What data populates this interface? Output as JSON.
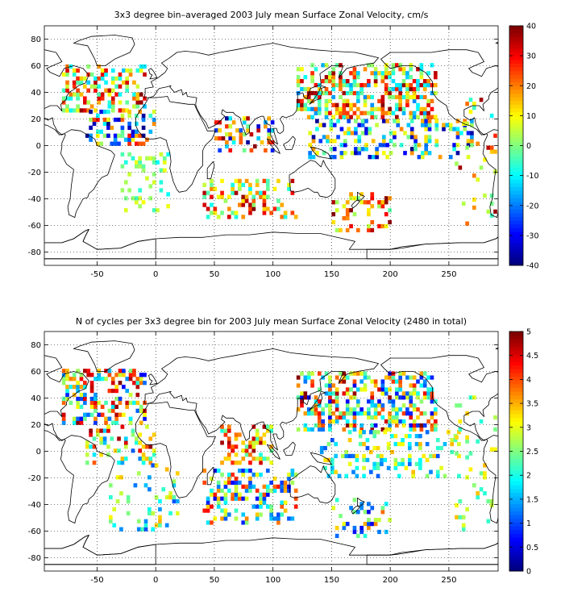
{
  "chart_data": [
    {
      "type": "heatmap",
      "title": "3x3 degree bin–averaged 2003 July mean Surface Zonal Velocity, cm/s",
      "xlabel": "",
      "ylabel": "",
      "xlim": [
        -95,
        292
      ],
      "ylim": [
        -90,
        90
      ],
      "xticks": [
        -50,
        0,
        50,
        100,
        150,
        200,
        250
      ],
      "yticks": [
        -80,
        -60,
        -40,
        -20,
        0,
        20,
        40,
        60,
        80
      ],
      "grid": true,
      "colormap": "jet",
      "colorbar_ticks": [
        -40,
        -30,
        -20,
        -10,
        0,
        10,
        20,
        30,
        40
      ],
      "clim": [
        -40,
        40
      ],
      "bin_size_deg": 3,
      "regions": [
        {
          "lon": [
            -80,
            -10
          ],
          "lat": [
            25,
            60
          ],
          "vmin": -15,
          "vmax": 40,
          "density": 0.45
        },
        {
          "lon": [
            -60,
            0
          ],
          "lat": [
            0,
            25
          ],
          "vmin": -40,
          "vmax": 30,
          "density": 0.35
        },
        {
          "lon": [
            -30,
            10
          ],
          "lat": [
            -50,
            -5
          ],
          "vmin": -10,
          "vmax": 10,
          "density": 0.2
        },
        {
          "lon": [
            50,
            100
          ],
          "lat": [
            -5,
            20
          ],
          "vmin": -40,
          "vmax": 40,
          "density": 0.4
        },
        {
          "lon": [
            40,
            120
          ],
          "lat": [
            -55,
            -25
          ],
          "vmin": -10,
          "vmax": 40,
          "density": 0.35
        },
        {
          "lon": [
            120,
            240
          ],
          "lat": [
            20,
            60
          ],
          "vmin": -20,
          "vmax": 40,
          "density": 0.45
        },
        {
          "lon": [
            130,
            270
          ],
          "lat": [
            -10,
            20
          ],
          "vmin": -40,
          "vmax": 20,
          "density": 0.35
        },
        {
          "lon": [
            150,
            200
          ],
          "lat": [
            -65,
            -35
          ],
          "vmin": -5,
          "vmax": 40,
          "density": 0.25
        },
        {
          "lon": [
            255,
            290
          ],
          "lat": [
            -60,
            40
          ],
          "vmin": -10,
          "vmax": 40,
          "density": 0.1
        }
      ]
    },
    {
      "type": "heatmap",
      "title": "N of cycles per 3x3 degree bin for 2003 July mean Surface Zonal Velocity (2480 in total)",
      "xlabel": "",
      "ylabel": "",
      "xlim": [
        -95,
        292
      ],
      "ylim": [
        -90,
        90
      ],
      "xticks": [
        -50,
        0,
        50,
        100,
        150,
        200,
        250
      ],
      "yticks": [
        -80,
        -60,
        -40,
        -20,
        0,
        20,
        40,
        60,
        80
      ],
      "grid": true,
      "colormap": "jet",
      "colorbar_ticks": [
        0,
        0.5,
        1,
        1.5,
        2,
        2.5,
        3,
        3.5,
        4,
        4.5,
        5
      ],
      "clim": [
        0,
        5
      ],
      "total_cycles": 2480,
      "bin_size_deg": 3,
      "regions": [
        {
          "lon": [
            -80,
            -10
          ],
          "lat": [
            20,
            60
          ],
          "vmin": 0.5,
          "vmax": 5,
          "density": 0.4
        },
        {
          "lon": [
            -60,
            0
          ],
          "lat": [
            -10,
            20
          ],
          "vmin": 1,
          "vmax": 5,
          "density": 0.3
        },
        {
          "lon": [
            -40,
            20
          ],
          "lat": [
            -60,
            -10
          ],
          "vmin": 1,
          "vmax": 3.5,
          "density": 0.2
        },
        {
          "lon": [
            55,
            100
          ],
          "lat": [
            -10,
            20
          ],
          "vmin": 2,
          "vmax": 5,
          "density": 0.4
        },
        {
          "lon": [
            40,
            120
          ],
          "lat": [
            -55,
            -15
          ],
          "vmin": 0.5,
          "vmax": 4.5,
          "density": 0.35
        },
        {
          "lon": [
            120,
            240
          ],
          "lat": [
            15,
            60
          ],
          "vmin": 0.5,
          "vmax": 5,
          "density": 0.45
        },
        {
          "lon": [
            140,
            260
          ],
          "lat": [
            -20,
            15
          ],
          "vmin": 1,
          "vmax": 3.5,
          "density": 0.3
        },
        {
          "lon": [
            150,
            200
          ],
          "lat": [
            -65,
            -35
          ],
          "vmin": 0.5,
          "vmax": 4,
          "density": 0.25
        },
        {
          "lon": [
            255,
            290
          ],
          "lat": [
            -60,
            40
          ],
          "vmin": 2,
          "vmax": 3.5,
          "density": 0.1
        }
      ]
    }
  ]
}
